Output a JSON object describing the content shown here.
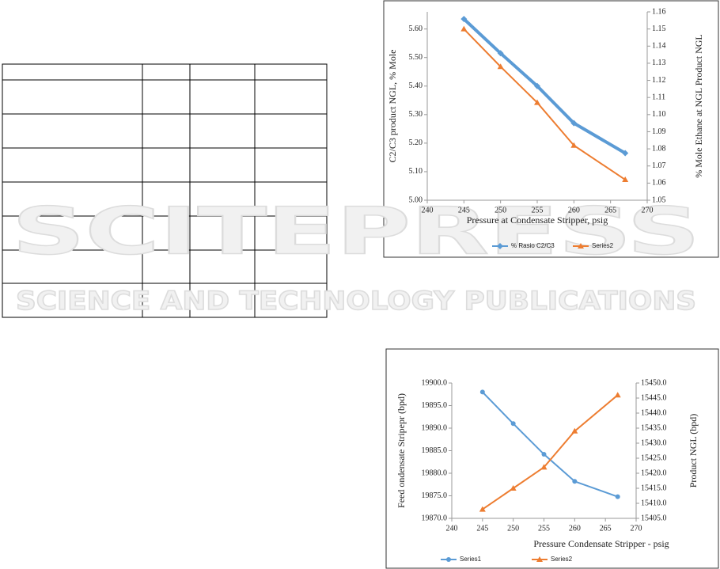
{
  "watermark": {
    "line1": "SCITEPRESS",
    "line2": "SCIENCE AND TECHNOLOGY PUBLICATIONS"
  },
  "chart_data": [
    {
      "type": "line",
      "xlabel": "Pressure at Condensate Stripper, psig",
      "ylabel": "C2/C3 product NGL, % Mole",
      "y2label": "% Mole Ethane at NGL Product NGL",
      "x": [
        245,
        250,
        255,
        260,
        267
      ],
      "xlim": [
        240,
        270
      ],
      "xticks": [
        240,
        245,
        250,
        255,
        260,
        265,
        270
      ],
      "ylim": [
        5.0,
        5.66
      ],
      "yticks": [
        {
          "value": 5.0,
          "label": "5.00"
        },
        {
          "value": 5.1,
          "label": "5.10"
        },
        {
          "value": 5.2,
          "label": "5.20"
        },
        {
          "value": 5.3,
          "label": "5.30"
        },
        {
          "value": 5.4,
          "label": "5.40"
        },
        {
          "value": 5.5,
          "label": "5.50"
        },
        {
          "value": 5.6,
          "label": "5.60"
        }
      ],
      "y2lim": [
        1.05,
        1.16
      ],
      "y2ticks": [
        1.05,
        1.06,
        1.07,
        1.08,
        1.09,
        {
          "value": 1.1,
          "label": "1.10"
        },
        1.11,
        1.12,
        1.13,
        1.14,
        1.15,
        1.16
      ],
      "legend": "bottom",
      "series": [
        {
          "name": "% Rasio C2/C3",
          "color": "#5b9bd5",
          "marker": "diamond",
          "values": [
            5.635,
            5.515,
            5.4,
            5.27,
            5.165
          ]
        },
        {
          "name": "Series2",
          "color": "#ed7d31",
          "marker": "triangle",
          "axis": "y2",
          "values": [
            1.15,
            1.128,
            1.107,
            1.082,
            1.062
          ]
        }
      ]
    },
    {
      "type": "line",
      "xlabel": "Pressure Condensate Stripper - psig",
      "ylabel": "Feed ondensate Stripepr (bpd)",
      "y2label": "Product NGL (bpd)",
      "x": [
        245,
        250,
        255,
        260,
        267
      ],
      "xlim": [
        240,
        270
      ],
      "xticks": [
        240,
        245,
        250,
        255,
        260,
        265,
        270
      ],
      "ylim": [
        19870,
        19900
      ],
      "yticks": [
        {
          "value": 19870,
          "label": "19870.0"
        },
        {
          "value": 19875,
          "label": "19875.0"
        },
        {
          "value": 19880,
          "label": "19880.0"
        },
        {
          "value": 19885,
          "label": "19885.0"
        },
        {
          "value": 19890,
          "label": "19890.0"
        },
        {
          "value": 19895,
          "label": "19895.0"
        },
        {
          "value": 19900,
          "label": "19900.0"
        }
      ],
      "y2lim": [
        15405,
        15450
      ],
      "y2ticks": [
        {
          "value": 15405,
          "label": "15405.0"
        },
        {
          "value": 15410,
          "label": "15410.0"
        },
        {
          "value": 15415,
          "label": "15415.0"
        },
        {
          "value": 15420,
          "label": "15420.0"
        },
        {
          "value": 15425,
          "label": "15425.0"
        },
        {
          "value": 15430,
          "label": "15430.0"
        },
        {
          "value": 15435,
          "label": "15435.0"
        },
        {
          "value": 15440,
          "label": "15440.0"
        },
        {
          "value": 15445,
          "label": "15445.0"
        },
        {
          "value": 15450,
          "label": "15450.0"
        }
      ],
      "legend": "bottom",
      "series": [
        {
          "name": "Series1",
          "color": "#5b9bd5",
          "marker": "circle",
          "values": [
            19898.0,
            19891.0,
            19884.2,
            19878.2,
            19874.8
          ]
        },
        {
          "name": "Series2",
          "color": "#ed7d31",
          "marker": "triangle",
          "axis": "y2",
          "values": [
            15408,
            15415,
            15422,
            15434,
            15446
          ]
        }
      ]
    }
  ]
}
